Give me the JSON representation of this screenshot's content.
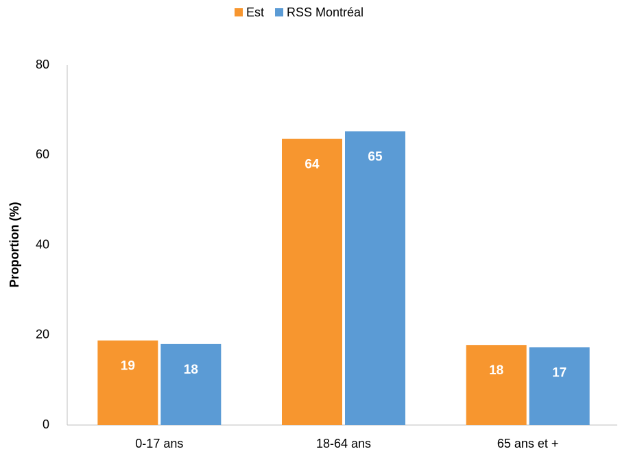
{
  "chart_data": {
    "type": "bar",
    "categories": [
      "0-17 ans",
      "18-64 ans",
      "65 ans et +"
    ],
    "series": [
      {
        "name": "Est",
        "color": "#f7962f",
        "values": [
          18.8,
          63.6,
          17.8
        ],
        "value_labels": [
          "19",
          "64",
          "18"
        ]
      },
      {
        "name": "RSS Montréal",
        "color": "#5b9bd5",
        "values": [
          18,
          65.3,
          17.3
        ],
        "value_labels": [
          "18",
          "65",
          "17"
        ]
      }
    ],
    "ylabel": "Proportion (%)",
    "ylim": [
      0,
      80
    ],
    "yticks": [
      0,
      20,
      40,
      60,
      80
    ],
    "grid": false,
    "legend": "top"
  }
}
